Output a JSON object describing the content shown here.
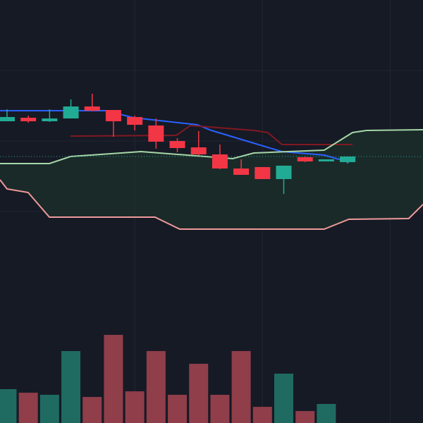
{
  "chart_data": {
    "type": "candlestick",
    "xlim": [
      -0.33,
      19.54
    ],
    "ylim": [
      0,
      100
    ],
    "yticks": [
      25,
      50,
      75
    ],
    "xticks": [
      6,
      12,
      18
    ],
    "grid": true,
    "up_color": "#22ab94",
    "down_color": "#f23645",
    "open": [
      57,
      58.25,
      57,
      58,
      62.25,
      61,
      58.5,
      55.5,
      50,
      47.75,
      45.25,
      40.25,
      40.75,
      36.5,
      44.25,
      42.75,
      42.5
    ],
    "high": [
      61.25,
      59,
      61.25,
      64.75,
      66.75,
      61,
      59,
      58,
      51,
      53.5,
      48.75,
      43.5,
      40.75,
      41.25,
      44.5,
      43.5,
      44.5
    ],
    "low": [
      57,
      56.5,
      56.75,
      58,
      60.5,
      51.5,
      53.75,
      47.25,
      46,
      45,
      40,
      38,
      36.5,
      31.25,
      42.5,
      42.75,
      42
    ],
    "close": [
      58.5,
      57,
      58,
      62.25,
      60.75,
      57,
      55.75,
      49.75,
      47.5,
      45.25,
      40.25,
      38,
      36.5,
      41.25,
      42.75,
      43.5,
      44.5
    ],
    "last_price": 44.5,
    "last_price_color": "#26a69a",
    "lines": [
      {
        "color": "#2962ff",
        "x": [
          -0.33,
          4.64,
          5.96,
          8.94,
          9.6,
          12.91,
          14.9,
          16.06
        ],
        "values": [
          60.75,
          60.75,
          58.25,
          55.75,
          53.75,
          46.25,
          45,
          42.5
        ]
      },
      {
        "color": "#801922",
        "x": [
          2.98,
          7.95,
          8.61,
          11.59,
          12.25,
          12.91,
          16.23
        ],
        "values": [
          51.75,
          52,
          55.5,
          53.75,
          53,
          48.75,
          48.75
        ]
      },
      {
        "color": "#a5d6a7",
        "x": [
          -0.33,
          1.99,
          2.98,
          6.29,
          10.6,
          11.59,
          14.9,
          16.23,
          16.89,
          19.54
        ],
        "values": [
          42,
          42,
          44.5,
          46.25,
          43.75,
          45.75,
          46.75,
          53,
          53.75,
          54
        ]
      },
      {
        "color": "#ef9a9a",
        "x": [
          -0.33,
          0,
          0.99,
          1.99,
          6.95,
          8.11,
          14.9,
          16.06,
          18.87,
          19.54
        ],
        "values": [
          36.25,
          33,
          31.75,
          23,
          23,
          18.75,
          18.75,
          22.25,
          22.5,
          27.5
        ]
      }
    ],
    "cloud_color": "#1b2e2a",
    "volume": {
      "ylim": [
        0,
        100
      ],
      "values": [
        34.3,
        30.7,
        28.6,
        72.9,
        26.4,
        89.3,
        32.1,
        72.9,
        28.6,
        60,
        28.6,
        72.9,
        16.4,
        50,
        12.1,
        19.3,
        null
      ],
      "up_color": "#1f6b62",
      "down_color": "#8f3e4a"
    }
  }
}
